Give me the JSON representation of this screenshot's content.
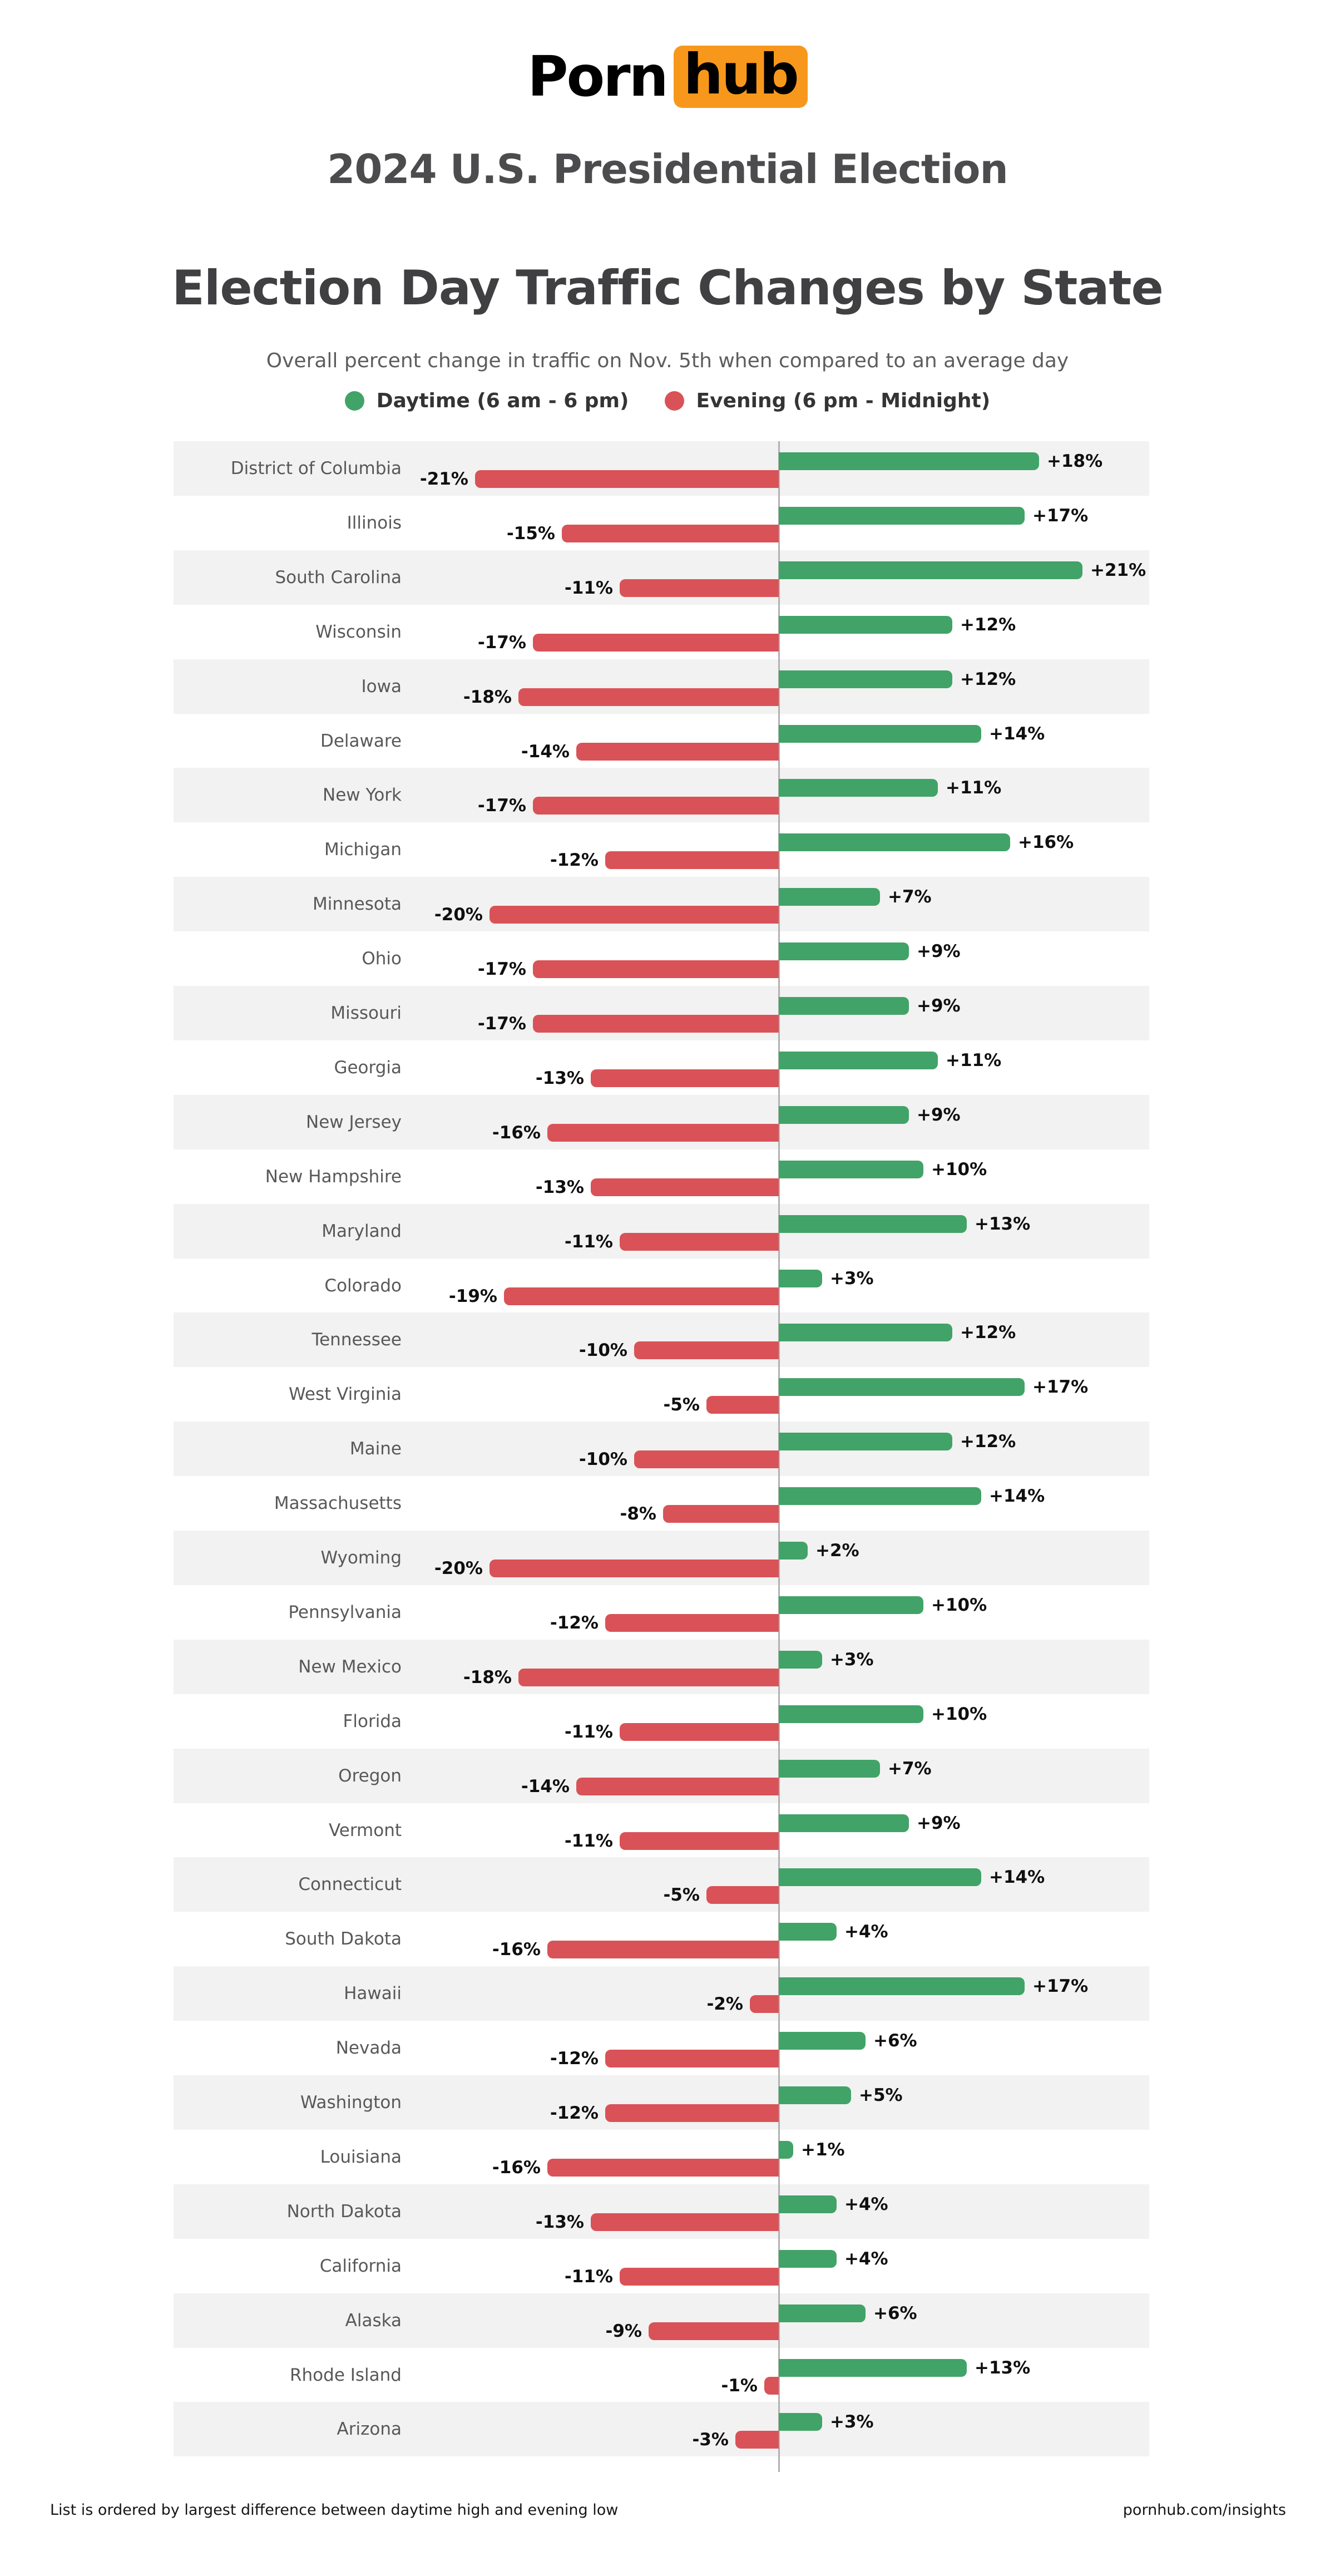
{
  "brand": {
    "part1": "Porn",
    "part2": "hub"
  },
  "header": {
    "supertitle": "2024 U.S. Presidential Election",
    "title": "Election Day Traffic Changes by State",
    "subtitle": "Overall percent change in traffic on Nov. 5th when compared to an average day"
  },
  "legend": {
    "items": [
      {
        "label": "Daytime (6 am - 6 pm)",
        "color": "#41a367"
      },
      {
        "label": "Evening (6 pm - Midnight)",
        "color": "#d95257"
      }
    ]
  },
  "footer": {
    "note": "List is ordered by largest difference between daytime high and evening low",
    "site": "pornhub.com/insights"
  },
  "colors": {
    "daytime": "#41a367",
    "evening": "#d95257",
    "orange": "#f7981d",
    "row_alt": "#f2f2f2",
    "row_base": "#ffffff",
    "axis": "#b2b2b2"
  },
  "chart_data": {
    "type": "bar",
    "orientation": "horizontal-diverging",
    "title": "Election Day Traffic Changes by State",
    "value_suffix": "%",
    "legend_position": "top",
    "xlim": [
      -21,
      21
    ],
    "categories": [
      "District of Columbia",
      "Illinois",
      "South Carolina",
      "Wisconsin",
      "Iowa",
      "Delaware",
      "New York",
      "Michigan",
      "Minnesota",
      "Ohio",
      "Missouri",
      "Georgia",
      "New Jersey",
      "New Hampshire",
      "Maryland",
      "Colorado",
      "Tennessee",
      "West Virginia",
      "Maine",
      "Massachusetts",
      "Wyoming",
      "Pennsylvania",
      "New Mexico",
      "Florida",
      "Oregon",
      "Vermont",
      "Connecticut",
      "South Dakota",
      "Hawaii",
      "Nevada",
      "Washington",
      "Louisiana",
      "North Dakota",
      "California",
      "Alaska",
      "Rhode Island",
      "Arizona"
    ],
    "series": [
      {
        "name": "Daytime (6 am - 6 pm)",
        "color": "#41a367",
        "values": [
          18,
          17,
          21,
          12,
          12,
          14,
          11,
          16,
          7,
          9,
          9,
          11,
          9,
          10,
          13,
          3,
          12,
          17,
          12,
          14,
          2,
          10,
          3,
          10,
          7,
          9,
          14,
          4,
          17,
          6,
          5,
          1,
          4,
          4,
          6,
          13,
          3
        ]
      },
      {
        "name": "Evening (6 pm - Midnight)",
        "color": "#d95257",
        "values": [
          -21,
          -15,
          -11,
          -17,
          -18,
          -14,
          -17,
          -12,
          -20,
          -17,
          -17,
          -13,
          -16,
          -13,
          -11,
          -19,
          -10,
          -5,
          -10,
          -8,
          -20,
          -12,
          -18,
          -11,
          -14,
          -11,
          -5,
          -16,
          -2,
          -12,
          -12,
          -16,
          -13,
          -11,
          -9,
          -1,
          -3
        ]
      }
    ]
  }
}
